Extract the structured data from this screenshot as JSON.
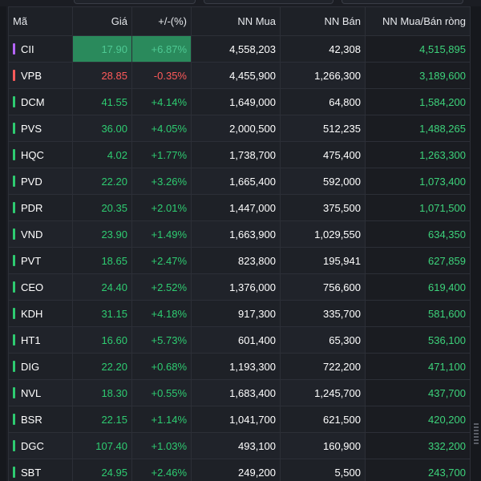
{
  "table": {
    "headers": {
      "ticker": "Mã",
      "price": "Giá",
      "change": "+/-(%)",
      "foreign_buy": "NN Mua",
      "foreign_sell": "NN Bán",
      "foreign_net": "NN Mua/Bán ròng"
    },
    "rows": [
      {
        "ticker": "CII",
        "price": "17.90",
        "change": "+6.87%",
        "buy": "4,558,203",
        "sell": "42,308",
        "net": "4,515,895",
        "status": "ceiling"
      },
      {
        "ticker": "VPB",
        "price": "28.85",
        "change": "-0.35%",
        "buy": "4,455,900",
        "sell": "1,266,300",
        "net": "3,189,600",
        "status": "down"
      },
      {
        "ticker": "DCM",
        "price": "41.55",
        "change": "+4.14%",
        "buy": "1,649,000",
        "sell": "64,800",
        "net": "1,584,200",
        "status": "up"
      },
      {
        "ticker": "PVS",
        "price": "36.00",
        "change": "+4.05%",
        "buy": "2,000,500",
        "sell": "512,235",
        "net": "1,488,265",
        "status": "up"
      },
      {
        "ticker": "HQC",
        "price": "4.02",
        "change": "+1.77%",
        "buy": "1,738,700",
        "sell": "475,400",
        "net": "1,263,300",
        "status": "up"
      },
      {
        "ticker": "PVD",
        "price": "22.20",
        "change": "+3.26%",
        "buy": "1,665,400",
        "sell": "592,000",
        "net": "1,073,400",
        "status": "up"
      },
      {
        "ticker": "PDR",
        "price": "20.35",
        "change": "+2.01%",
        "buy": "1,447,000",
        "sell": "375,500",
        "net": "1,071,500",
        "status": "up"
      },
      {
        "ticker": "VND",
        "price": "23.90",
        "change": "+1.49%",
        "buy": "1,663,900",
        "sell": "1,029,550",
        "net": "634,350",
        "status": "up"
      },
      {
        "ticker": "PVT",
        "price": "18.65",
        "change": "+2.47%",
        "buy": "823,800",
        "sell": "195,941",
        "net": "627,859",
        "status": "up"
      },
      {
        "ticker": "CEO",
        "price": "24.40",
        "change": "+2.52%",
        "buy": "1,376,000",
        "sell": "756,600",
        "net": "619,400",
        "status": "up"
      },
      {
        "ticker": "KDH",
        "price": "31.15",
        "change": "+4.18%",
        "buy": "917,300",
        "sell": "335,700",
        "net": "581,600",
        "status": "up"
      },
      {
        "ticker": "HT1",
        "price": "16.60",
        "change": "+5.73%",
        "buy": "601,400",
        "sell": "65,300",
        "net": "536,100",
        "status": "up"
      },
      {
        "ticker": "DIG",
        "price": "22.20",
        "change": "+0.68%",
        "buy": "1,193,300",
        "sell": "722,200",
        "net": "471,100",
        "status": "up"
      },
      {
        "ticker": "NVL",
        "price": "18.30",
        "change": "+0.55%",
        "buy": "1,683,400",
        "sell": "1,245,700",
        "net": "437,700",
        "status": "up"
      },
      {
        "ticker": "BSR",
        "price": "22.15",
        "change": "+1.14%",
        "buy": "1,041,700",
        "sell": "621,500",
        "net": "420,200",
        "status": "up"
      },
      {
        "ticker": "DGC",
        "price": "107.40",
        "change": "+1.03%",
        "buy": "493,100",
        "sell": "160,900",
        "net": "332,200",
        "status": "up"
      },
      {
        "ticker": "SBT",
        "price": "24.95",
        "change": "+2.46%",
        "buy": "249,200",
        "sell": "5,500",
        "net": "243,700",
        "status": "up"
      }
    ]
  },
  "colors": {
    "up": "#2ecc71",
    "down": "#ff5a5a",
    "ceiling": "#c77dff",
    "ceiling_cell_bg": "#2a8a5c",
    "net_value": "#3dd37b",
    "background": "#1b1d23",
    "sort_accent": "#8a63d2"
  }
}
